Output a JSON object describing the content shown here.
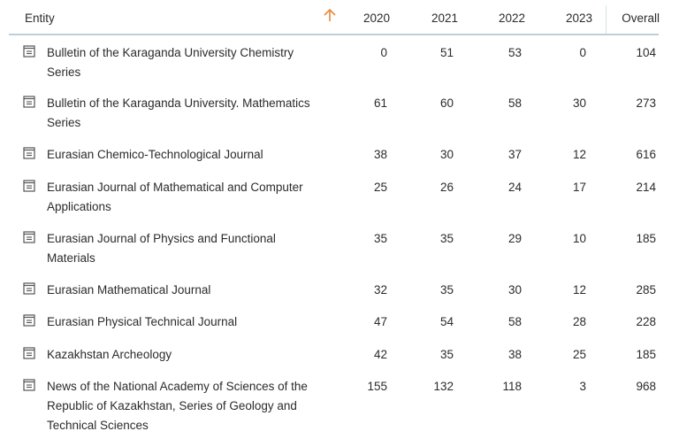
{
  "header": {
    "entity": "Entity",
    "years": [
      "2020",
      "2021",
      "2022",
      "2023"
    ],
    "overall": "Overall"
  },
  "rows": [
    {
      "name": "Bulletin of the Karaganda University Chemistry Series",
      "y2020": "0",
      "y2021": "51",
      "y2022": "53",
      "y2023": "0",
      "overall": "104"
    },
    {
      "name": "Bulletin of the Karaganda University. Mathematics Series",
      "y2020": "61",
      "y2021": "60",
      "y2022": "58",
      "y2023": "30",
      "overall": "273"
    },
    {
      "name": "Eurasian Chemico-Technological Journal",
      "y2020": "38",
      "y2021": "30",
      "y2022": "37",
      "y2023": "12",
      "overall": "616"
    },
    {
      "name": "Eurasian Journal of Mathematical and Computer Applications",
      "y2020": "25",
      "y2021": "26",
      "y2022": "24",
      "y2023": "17",
      "overall": "214"
    },
    {
      "name": "Eurasian Journal of Physics and Functional Materials",
      "y2020": "35",
      "y2021": "35",
      "y2022": "29",
      "y2023": "10",
      "overall": "185"
    },
    {
      "name": "Eurasian Mathematical Journal",
      "y2020": "32",
      "y2021": "35",
      "y2022": "30",
      "y2023": "12",
      "overall": "285"
    },
    {
      "name": "Eurasian Physical Technical Journal",
      "y2020": "47",
      "y2021": "54",
      "y2022": "58",
      "y2023": "28",
      "overall": "228"
    },
    {
      "name": "Kazakhstan Archeology",
      "y2020": "42",
      "y2021": "35",
      "y2022": "38",
      "y2023": "25",
      "overall": "185"
    },
    {
      "name": "News of the National Academy of Sciences of the Republic of Kazakhstan, Series of Geology and Technical Sciences",
      "y2020": "155",
      "y2021": "132",
      "y2022": "118",
      "y2023": "3",
      "overall": "968"
    }
  ],
  "icons": {
    "sort": "arrow-up-icon",
    "row": "journal-document-icon"
  },
  "colors": {
    "sort_arrow": "#e8893a",
    "header_rule": "#bcd0d6",
    "icon": "#555555"
  }
}
